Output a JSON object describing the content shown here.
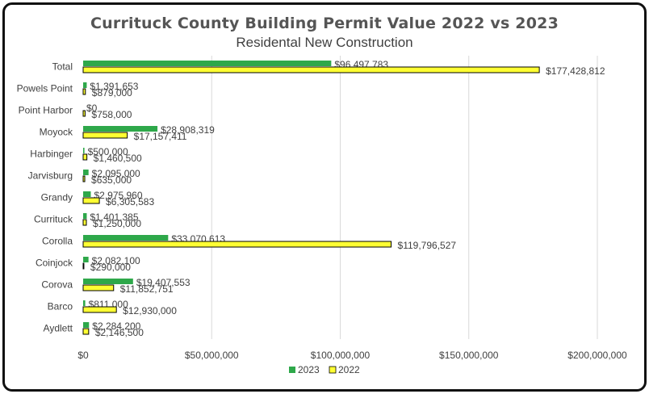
{
  "chart_data": {
    "type": "bar",
    "orientation": "horizontal",
    "title": "Currituck County Building Permit Value 2022 vs 2023",
    "subtitle": "Residental New Construction",
    "categories": [
      "Total",
      "Powels Point",
      "Point Harbor",
      "Moyock",
      "Harbinger",
      "Jarvisburg",
      "Grandy",
      "Currituck",
      "Corolla",
      "Coinjock",
      "Corova",
      "Barco",
      "Aydlett"
    ],
    "series": [
      {
        "name": "2023",
        "color": "#2ea84a",
        "values": [
          96497783,
          1391653,
          0,
          28908319,
          500000,
          2095000,
          2975960,
          1401385,
          33070613,
          2082100,
          19407553,
          811000,
          2284200
        ],
        "labels": [
          "$96,497,783",
          "$1,391,653",
          "$0",
          "$28,908,319",
          "$500,000",
          "$2,095,000",
          "$2,975,960",
          "$1,401,385",
          "$33,070,613",
          "$2,082,100",
          "$19,407,553",
          "$811,000",
          "$2,284,200"
        ]
      },
      {
        "name": "2022",
        "color": "#ffff33",
        "values": [
          177428812,
          879000,
          758000,
          17157411,
          1460500,
          635000,
          6305583,
          1250000,
          119796527,
          290000,
          11852751,
          12930000,
          2146500
        ],
        "labels": [
          "$177,428,812",
          "$879,000",
          "$758,000",
          "$17,157,411",
          "$1,460,500",
          "$635,000",
          "$6,305,583",
          "$1,250,000",
          "$119,796,527",
          "$290,000",
          "$11,852,751",
          "$12,930,000",
          "$2,146,500"
        ]
      }
    ],
    "xlim": [
      0,
      200000000
    ],
    "xticks": [
      0,
      50000000,
      100000000,
      150000000,
      200000000
    ],
    "xtick_labels": [
      "$0",
      "$50,000,000",
      "$100,000,000",
      "$150,000,000",
      "$200,000,000"
    ],
    "xlabel": "",
    "ylabel": "",
    "grid": "vertical",
    "legend": "bottom-center"
  }
}
